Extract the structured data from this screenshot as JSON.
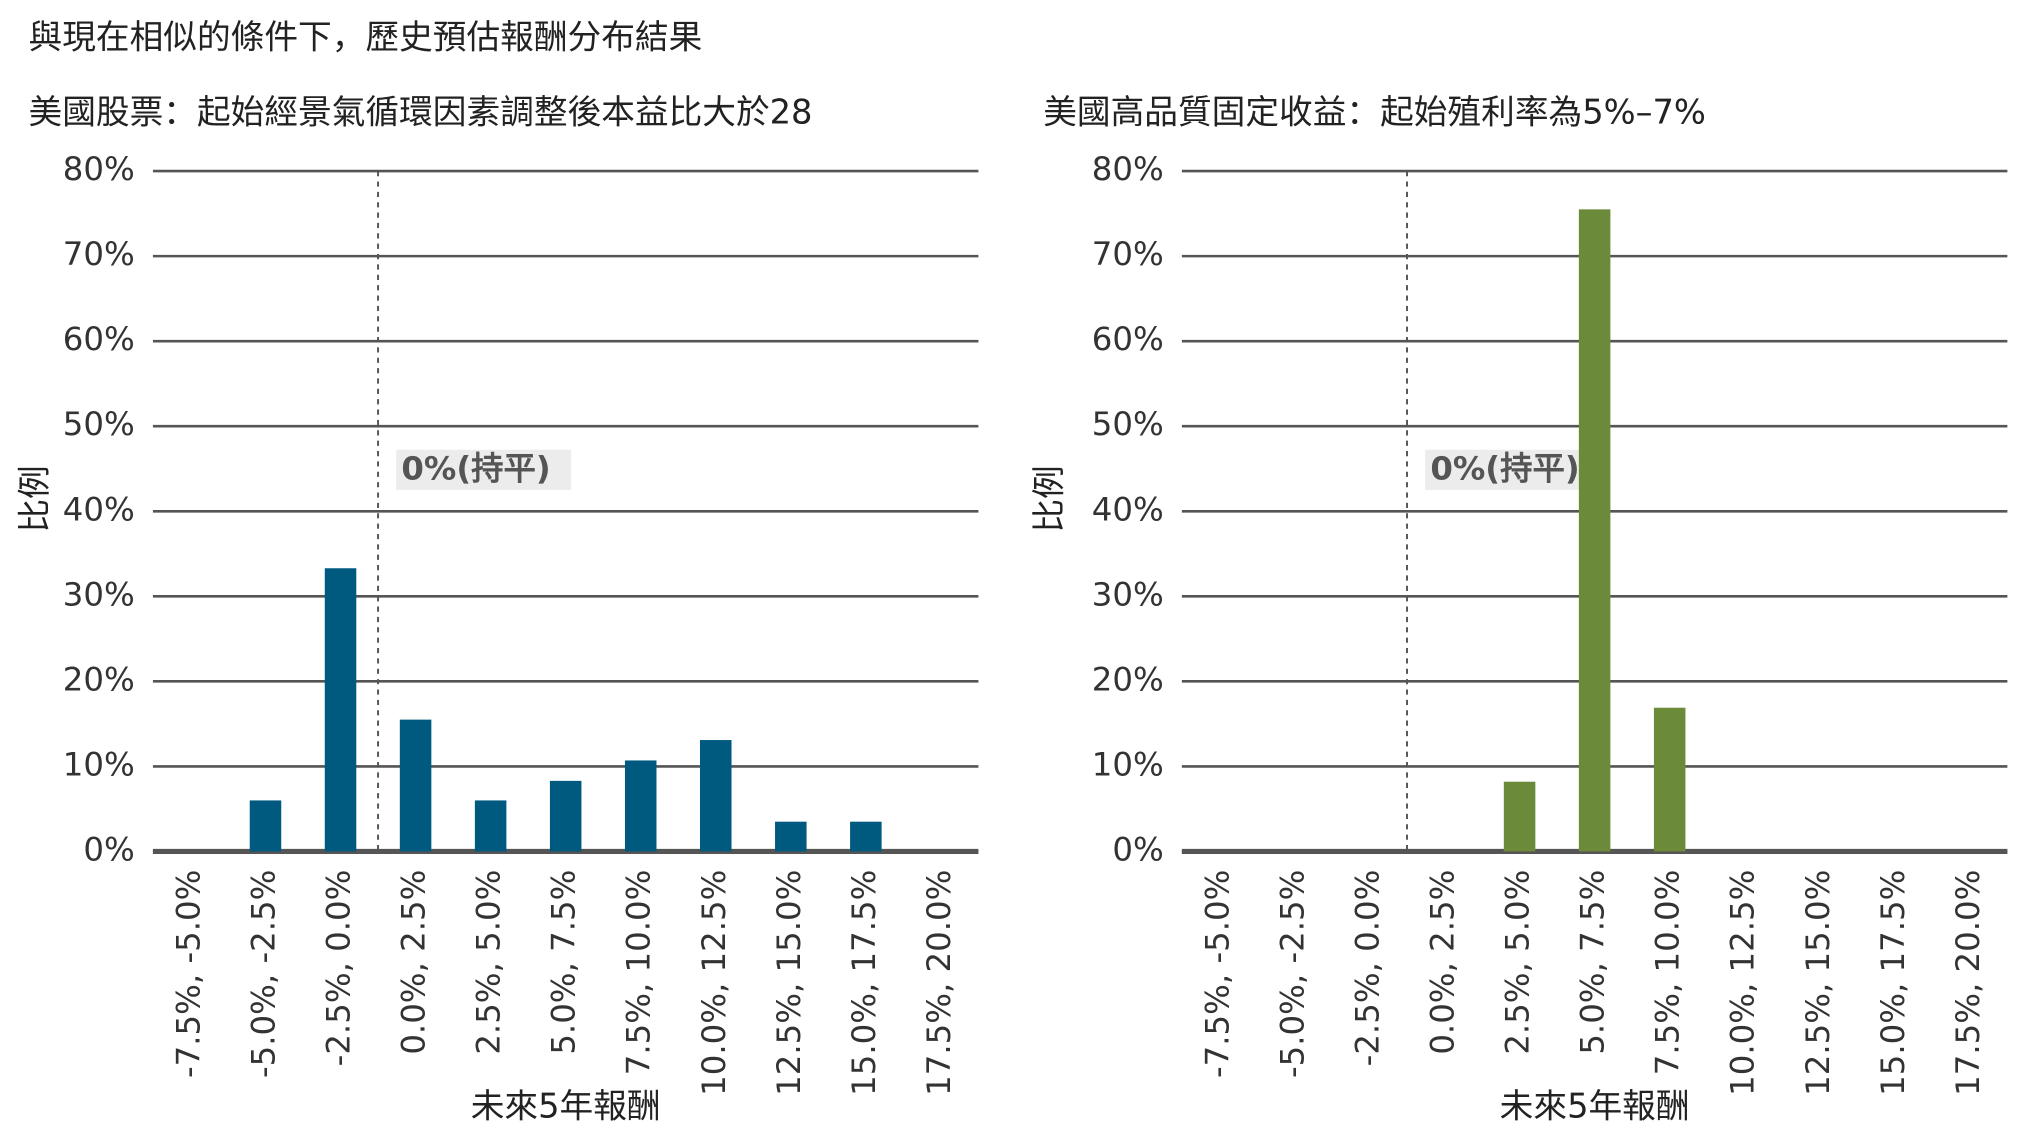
{
  "title": "與現在相似的條件下，歷史預估報酬分布結果",
  "chart_data": [
    {
      "type": "bar",
      "title": "美國股票：起始經景氣循環因素調整後本益比大於28",
      "x_label": "未來5年報酬",
      "y_label": "比例",
      "annotation": "0%(持平)",
      "categories": [
        "-7.5%, -5.0%",
        "-5.0%, -2.5%",
        "-2.5%, 0.0%",
        "0.0%, 2.5%",
        "2.5%, 5.0%",
        "5.0%, 7.5%",
        "7.5%, 10.0%",
        "10.0%, 12.5%",
        "12.5%, 15.0%",
        "15.0%, 17.5%",
        "17.5%, 20.0%"
      ],
      "values": [
        0,
        6,
        33.3,
        15.5,
        6,
        8.3,
        10.7,
        13.1,
        3.5,
        3.5,
        0
      ],
      "color": "#005a80",
      "ylim": [
        0,
        80
      ],
      "yticks": [
        {
          "value": 0,
          "label": "0%"
        },
        {
          "value": 10,
          "label": "10%"
        },
        {
          "value": 20,
          "label": "20%"
        },
        {
          "value": 30,
          "label": "30%"
        },
        {
          "value": 40,
          "label": "40%"
        },
        {
          "value": 50,
          "label": "50%"
        },
        {
          "value": 60,
          "label": "60%"
        },
        {
          "value": 70,
          "label": "70%"
        },
        {
          "value": 80,
          "label": "80%"
        }
      ],
      "grid": true
    },
    {
      "type": "bar",
      "title": "美國高品質固定收益：起始殖利率為5%–7%",
      "x_label": "未來5年報酬",
      "y_label": "比例",
      "annotation": "0%(持平)",
      "categories": [
        "-7.5%, -5.0%",
        "-5.0%, -2.5%",
        "-2.5%, 0.0%",
        "0.0%, 2.5%",
        "2.5%, 5.0%",
        "5.0%, 7.5%",
        "7.5%, 10.0%",
        "10.0%, 12.5%",
        "12.5%, 15.0%",
        "15.0%, 17.5%",
        "17.5%, 20.0%"
      ],
      "values": [
        0,
        0,
        0,
        0,
        8.2,
        75.5,
        16.9,
        0,
        0,
        0,
        0
      ],
      "color": "#6b8a3a",
      "ylim": [
        0,
        80
      ],
      "yticks": [
        {
          "value": 0,
          "label": "0%"
        },
        {
          "value": 10,
          "label": "10%"
        },
        {
          "value": 20,
          "label": "20%"
        },
        {
          "value": 30,
          "label": "30%"
        },
        {
          "value": 40,
          "label": "40%"
        },
        {
          "value": 50,
          "label": "50%"
        },
        {
          "value": 60,
          "label": "60%"
        },
        {
          "value": 70,
          "label": "70%"
        },
        {
          "value": 80,
          "label": "80%"
        }
      ],
      "grid": true
    }
  ]
}
